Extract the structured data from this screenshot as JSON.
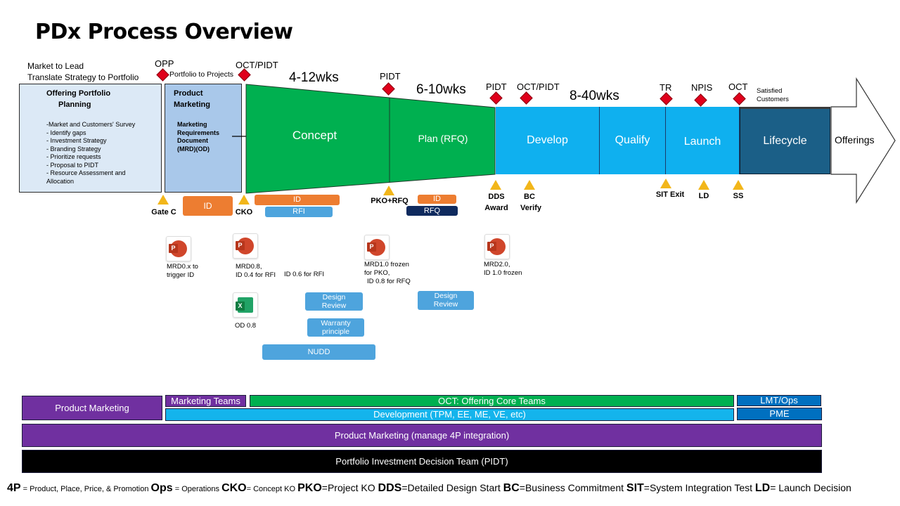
{
  "title": "PDx Process Overview",
  "left": {
    "line1": "Market to Lead",
    "line2": "Translate Strategy to Portfolio",
    "box1_title1": "Offering Portfolio",
    "box1_title2": "Planning",
    "box1_items": [
      "-Market and Customers' Survey",
      "- Identify gaps",
      "- Investment Strategy",
      "- Branding Strategy",
      "- Prioritize requests",
      "- Proposal to PIDT",
      "- Resource Assessment and",
      "Allocation"
    ],
    "box2_title1": "Product",
    "box2_title2": "Marketing",
    "box2_items": [
      "Marketing",
      "Requirements",
      "Document",
      "(MRD)(OD)"
    ]
  },
  "milestones": {
    "opp": "OPP",
    "portfolio_to_projects": "Portfolio to Projects",
    "oct_pidt_1": "OCT/PIDT",
    "pidt_1": "PIDT",
    "pidt_2": "PIDT",
    "oct_pidt_2": "OCT/PIDT",
    "tr": "TR",
    "npis": "NPIS",
    "oct": "OCT",
    "satisfied1": "Satisfied",
    "satisfied2": "Customers"
  },
  "durations": {
    "d1": "4-12wks",
    "d2": "6-10wks",
    "d3": "8-40wks"
  },
  "stages": {
    "concept": "Concept",
    "plan": "Plan (RFQ)",
    "develop": "Develop",
    "qualify": "Qualify",
    "launch": "Launch",
    "lifecycle": "Lifecycle",
    "offerings": "Offerings"
  },
  "gates": {
    "gate_c": "Gate C",
    "cko": "CKO",
    "pko_rfq": "PKO+RFQ",
    "dds1": "DDS",
    "dds2": "Award",
    "bc1": "BC",
    "bc2": "Verify",
    "sit_exit": "SIT Exit",
    "ld": "LD",
    "ss": "SS"
  },
  "pills": {
    "id1": "ID",
    "id2": "ID",
    "rfi": "RFI",
    "id3": "ID",
    "rfq": "RFQ",
    "design_review1_a": "Design",
    "design_review1_b": "Review",
    "warranty_a": "Warranty",
    "warranty_b": "principle",
    "nudd": "NUDD",
    "design_review2_a": "Design",
    "design_review2_b": "Review"
  },
  "docs": {
    "d1a": "MRD0.x to",
    "d1b": "trigger ID",
    "d2a": "MRD0.8,",
    "d2b": "ID 0.4 for RFI",
    "d3": "ID 0.6 for RFI",
    "d4a": "MRD1.0 frozen",
    "d4b": "for PKO,",
    "d4c": "ID 0.8 for RFQ",
    "d5a": "MRD2.0,",
    "d5b": "ID 1.0 frozen",
    "od": "OD 0.8"
  },
  "teams": {
    "product_marketing": "Product Marketing",
    "marketing_teams": "Marketing Teams",
    "oct": "OCT: Offering Core Teams",
    "lmt_ops": "LMT/Ops",
    "development": "Development (TPM, EE, ME, VE, etc)",
    "pme": "PME",
    "pm_4p": "Product Marketing (manage 4P integration)",
    "pidt": "Portfolio Investment Decision Team (PIDT)"
  },
  "legend": {
    "k1": "4P",
    "v1": " = Product, Place, Price, & Promotion ",
    "k2": "Ops",
    "v2": " = Operations ",
    "k3": "CKO",
    "v3": "= Concept KO ",
    "k4": "PKO",
    "v4": "=Project KO  ",
    "k5": "DDS",
    "v5": "=Detailed Design Start  ",
    "k6": "BC",
    "v6": "=Business Commitment ",
    "k7": "SIT",
    "v7": "=System Integration Test  ",
    "k8": "LD",
    "v8": "= Launch Decision"
  },
  "colors": {
    "green": "#00b050",
    "cyan": "#0fb0ef",
    "teal": "#1b5f87",
    "purple": "#7030a0",
    "orange": "#ed7d31",
    "navy": "#0f2a5e",
    "red": "#e0001b",
    "yellow": "#f2b61a"
  },
  "icons": [
    "powerpoint-icon",
    "excel-icon",
    "diamond-milestone-icon",
    "triangle-gate-icon"
  ]
}
